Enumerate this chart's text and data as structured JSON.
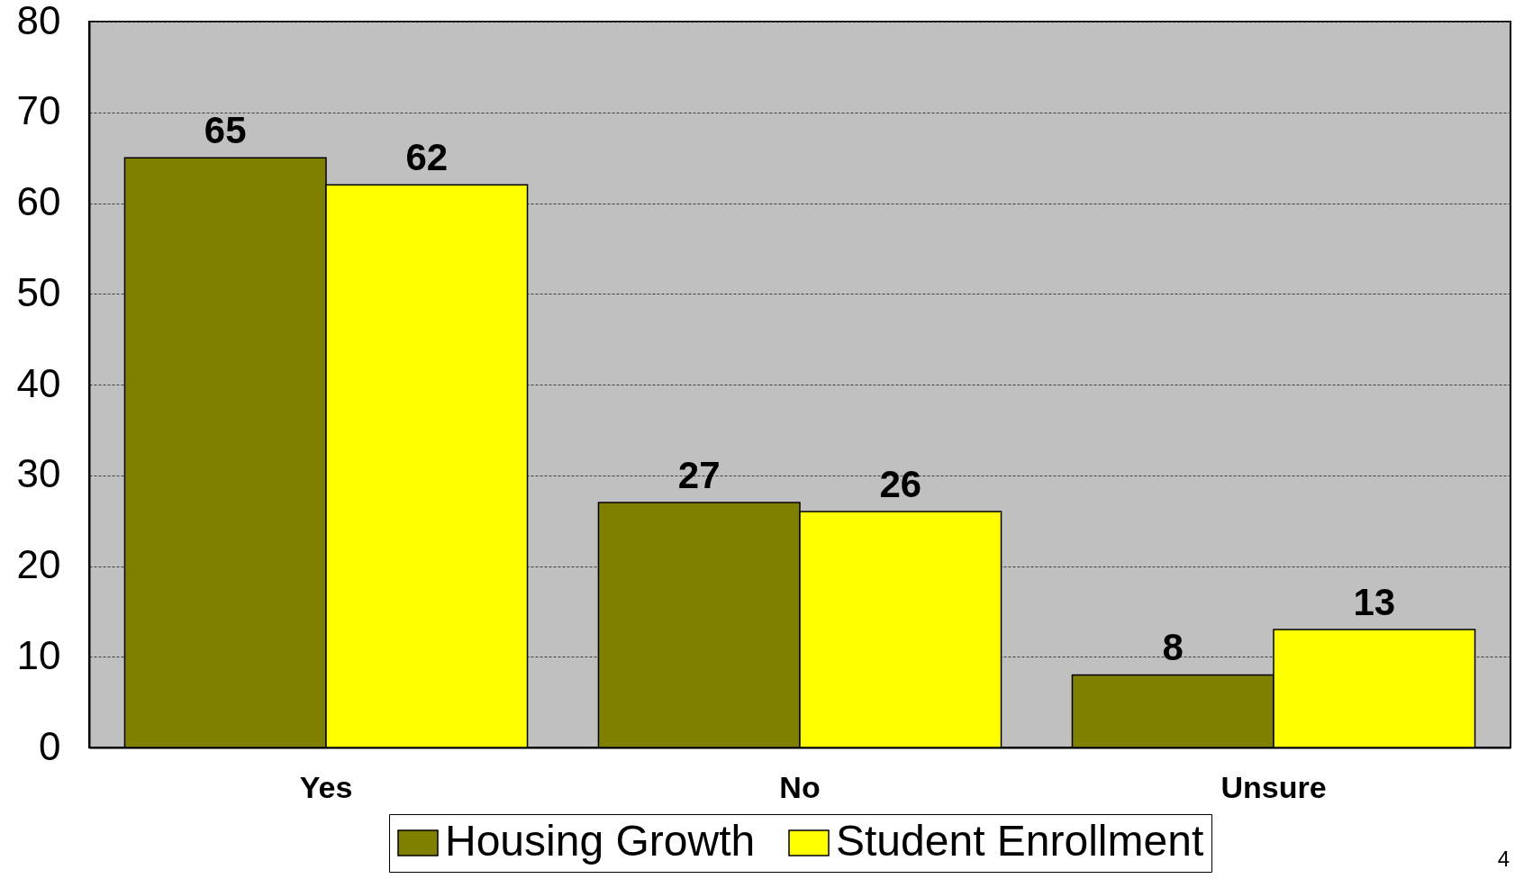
{
  "chart_data": {
    "type": "bar",
    "categories": [
      "Yes",
      "No",
      "Unsure"
    ],
    "series": [
      {
        "name": "Housing Growth",
        "color": "#808000",
        "values": [
          65,
          27,
          8
        ]
      },
      {
        "name": "Student Enrollment",
        "color": "#ffff00",
        "values": [
          62,
          26,
          13
        ]
      }
    ],
    "ylim": [
      0,
      80
    ],
    "yticks": [
      0,
      10,
      20,
      30,
      40,
      50,
      60,
      70,
      80
    ],
    "grid": "y",
    "legend": "bottom",
    "data_labels": true,
    "annotations": [
      "4"
    ]
  }
}
